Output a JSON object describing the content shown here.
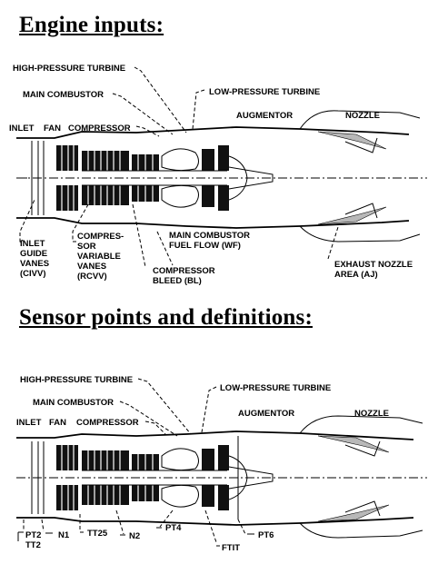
{
  "sections": [
    {
      "heading": "Engine inputs:",
      "labels": {
        "hpt": "HIGH-PRESSURE TURBINE",
        "main_combustor": "MAIN COMBUSTOR",
        "lpt": "LOW-PRESSURE TURBINE",
        "augmentor": "AUGMENTOR",
        "nozzle": "NOZZLE",
        "inlet": "INLET",
        "fan": "FAN",
        "compressor": "COMPRESSOR",
        "civv": [
          "INLET",
          "GUIDE",
          "VANES",
          "(CIVV)"
        ],
        "rcvv": [
          "COMPRES-",
          "SOR",
          "VARIABLE",
          "VANES",
          "(RCVV)"
        ],
        "wf": [
          "MAIN COMBUSTOR",
          "FUEL FLOW (WF)"
        ],
        "bl": [
          "COMPRESSOR",
          "BLEED (BL)"
        ],
        "aj": [
          "EXHAUST NOZZLE",
          "AREA (AJ)"
        ]
      }
    },
    {
      "heading": "Sensor points and definitions:",
      "labels": {
        "hpt": "HIGH-PRESSURE TURBINE",
        "main_combustor": "MAIN COMBUSTOR",
        "lpt": "LOW-PRESSURE TURBINE",
        "augmentor": "AUGMENTOR",
        "nozzle": "NOZZLE",
        "inlet": "INLET",
        "fan": "FAN",
        "compressor": "COMPRESSOR",
        "pt2": "PT2",
        "tt2": "TT2",
        "n1": "N1",
        "tt25": "TT25",
        "n2": "N2",
        "pt4": "PT4",
        "pt6": "PT6",
        "ftit": "FTIT"
      }
    }
  ]
}
